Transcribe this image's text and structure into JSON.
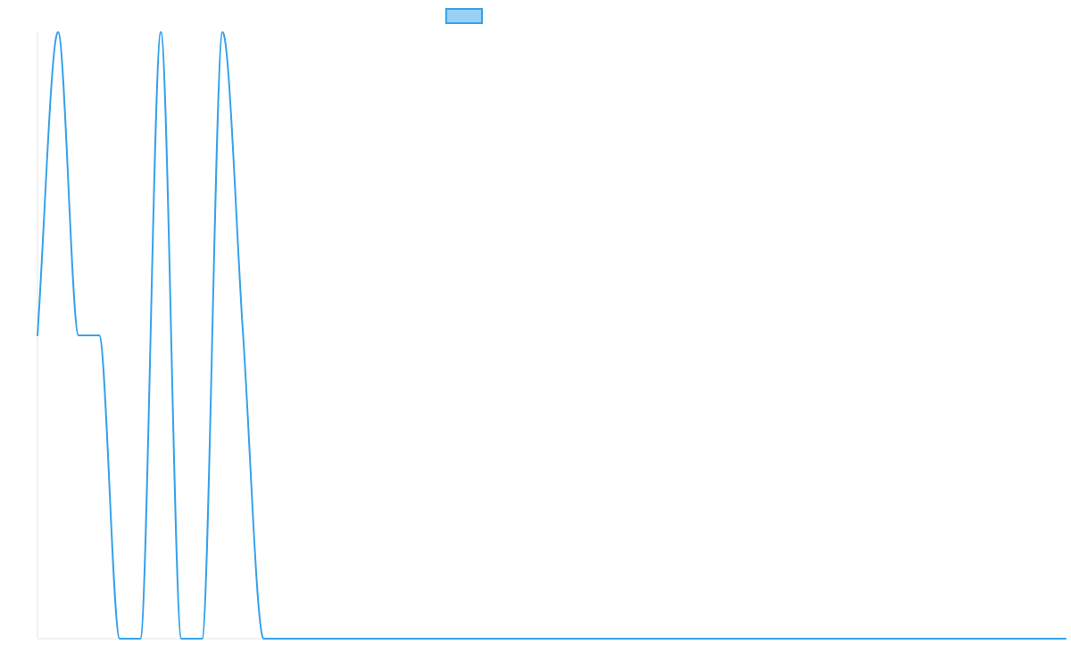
{
  "colors": {
    "series_stroke": "#36a2eb",
    "series_fill": "#9ad0f5",
    "axis": "#e6e6e6",
    "background": "#ffffff"
  },
  "chart_data": {
    "type": "line",
    "title": "",
    "xlabel": "",
    "ylabel": "",
    "grid": false,
    "legend": "top-center",
    "ylim": [
      0,
      2
    ],
    "x": [
      0,
      1,
      2,
      3,
      4,
      5,
      6,
      7,
      8,
      9,
      10,
      11,
      12,
      13,
      14,
      15,
      16,
      17,
      18,
      19,
      20,
      21,
      22,
      23,
      24,
      25,
      26,
      27,
      28,
      29,
      30,
      31,
      32,
      33,
      34,
      35,
      36,
      37,
      38,
      39,
      40,
      41,
      42,
      43,
      44,
      45,
      46,
      47,
      48,
      49,
      50
    ],
    "series": [
      {
        "values": [
          1,
          2,
          1,
          1,
          0,
          0,
          2,
          0,
          0,
          2,
          1,
          0,
          0,
          0,
          0,
          0,
          0,
          0,
          0,
          0,
          0,
          0,
          0,
          0,
          0,
          0,
          0,
          0,
          0,
          0,
          0,
          0,
          0,
          0,
          0,
          0,
          0,
          0,
          0,
          0,
          0,
          0,
          0,
          0,
          0,
          0,
          0,
          0,
          0,
          0,
          0
        ]
      }
    ]
  }
}
